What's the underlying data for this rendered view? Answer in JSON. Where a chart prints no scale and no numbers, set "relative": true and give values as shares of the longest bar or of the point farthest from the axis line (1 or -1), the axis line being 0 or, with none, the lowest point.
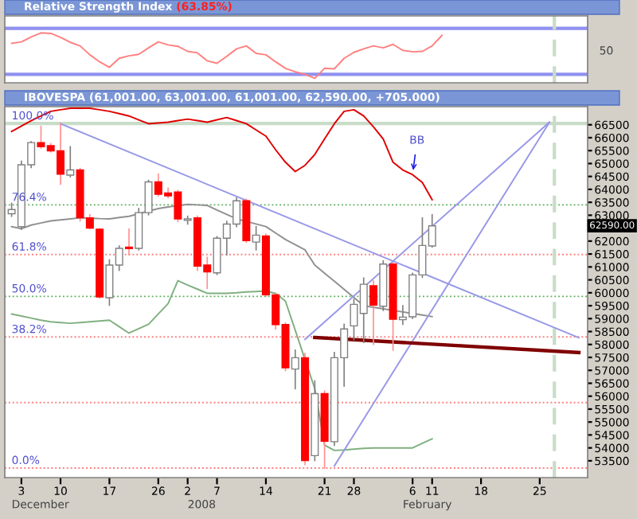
{
  "chart_data": [
    {
      "type": "line",
      "relative": true,
      "title": "Relative Strength Index",
      "subtitle": "(63.85%)",
      "categories": [
        null,
        "3",
        null,
        null,
        null,
        "10",
        null,
        null,
        null,
        null,
        "17",
        null,
        null,
        null,
        null,
        "26",
        null,
        null,
        "2",
        null,
        null,
        "7",
        null,
        null,
        null,
        null,
        "14",
        null,
        null,
        null,
        null,
        null,
        "21",
        null,
        null,
        "28",
        null,
        null,
        null,
        null,
        null,
        "6",
        null,
        "11",
        null,
        null,
        null,
        null,
        "18",
        null,
        null,
        null,
        null,
        null,
        "25",
        null,
        null,
        null,
        null
      ],
      "tick_labels": false,
      "series": [
        {
          "color": "#ff8080",
          "values": [
            0.79,
            0.82,
            0.92,
            1,
            0.99,
            0.91,
            0.81,
            0.74,
            0.56,
            0.42,
            0.31,
            0.49,
            0.54,
            0.57,
            0.7,
            0.82,
            0.76,
            0.73,
            0.63,
            0.6,
            0.44,
            0.39,
            0.53,
            0.68,
            0.74,
            0.59,
            0.56,
            0.42,
            0.29,
            0.22,
            0.17,
            0.09,
            0.29,
            0.28,
            0.49,
            0.61,
            0.68,
            0.74,
            0.7,
            0.77,
            0.65,
            0.62,
            0.63,
            0.74,
            0.95,
            null,
            null,
            null,
            null,
            null,
            null,
            null,
            null,
            null,
            null,
            null,
            null,
            null,
            null
          ]
        }
      ],
      "ref_lines": [
        {
          "axis": "y",
          "value": 1.09,
          "label": null,
          "color": "#9090f0",
          "line_style": "solid"
        },
        {
          "axis": "y",
          "value": 0.17,
          "label": null,
          "color": "#9090f0",
          "line_style": "solid"
        }
      ],
      "annotations": [
        "50"
      ]
    },
    {
      "type": "candlestick",
      "title": "IBOVESPA (61,001.00, 63,001.00, 61,001.00, 62,590.00, +705.000)",
      "categories": [
        null,
        "3",
        null,
        null,
        null,
        "10",
        null,
        null,
        null,
        null,
        "17",
        null,
        null,
        null,
        null,
        "26",
        null,
        null,
        "2",
        null,
        null,
        "7",
        null,
        null,
        null,
        null,
        "14",
        null,
        null,
        null,
        null,
        null,
        "21",
        null,
        null,
        "28",
        null,
        null,
        null,
        null,
        null,
        "6",
        null,
        "11",
        null,
        null,
        null,
        null,
        "18",
        null,
        null,
        null,
        null,
        null,
        "25",
        null,
        null,
        null,
        null
      ],
      "ylim": [
        52850,
        67200
      ],
      "ohlc": [
        [
          63060,
          63460,
          62960,
          63220
        ],
        [
          62560,
          65090,
          62460,
          64950
        ],
        [
          64950,
          65840,
          64850,
          65810
        ],
        [
          65810,
          66440,
          65600,
          65650
        ],
        [
          65690,
          65770,
          65450,
          65490
        ],
        [
          65490,
          66540,
          64200,
          64590
        ],
        [
          64550,
          65650,
          64490,
          64750
        ],
        [
          64750,
          64810,
          62780,
          62900
        ],
        [
          62900,
          63020,
          62480,
          62500
        ],
        [
          62460,
          62480,
          59800,
          59840
        ],
        [
          59810,
          61270,
          59520,
          61070
        ],
        [
          61070,
          61810,
          60870,
          61720
        ],
        [
          61770,
          62460,
          61470,
          61710
        ],
        [
          61720,
          63260,
          61660,
          63100
        ],
        [
          63100,
          64350,
          63020,
          64290
        ],
        [
          64290,
          64590,
          63750,
          63810
        ],
        [
          63860,
          64050,
          63680,
          63750
        ],
        [
          63900,
          63960,
          62760,
          62860
        ],
        [
          62800,
          62960,
          62660,
          62860
        ],
        [
          62900,
          62960,
          60870,
          61030
        ],
        [
          61070,
          61370,
          60170,
          60810
        ],
        [
          60770,
          62170,
          60710,
          62110
        ],
        [
          62110,
          62760,
          61470,
          62660
        ],
        [
          62660,
          63660,
          62560,
          63560
        ],
        [
          63560,
          63620,
          61960,
          62020
        ],
        [
          61960,
          62560,
          61660,
          62230
        ],
        [
          62200,
          62260,
          59860,
          59920
        ],
        [
          59920,
          59980,
          58600,
          58770
        ],
        [
          58770,
          58830,
          56990,
          57100
        ],
        [
          57050,
          57780,
          56290,
          57490
        ],
        [
          57490,
          57650,
          53350,
          53510
        ],
        [
          53700,
          56590,
          53510,
          56100
        ],
        [
          56100,
          56200,
          53220,
          54260
        ],
        [
          54240,
          57690,
          54100,
          57490
        ],
        [
          57490,
          58780,
          56390,
          58600
        ],
        [
          58720,
          59740,
          58180,
          59550
        ],
        [
          59200,
          60570,
          58080,
          60330
        ],
        [
          60270,
          60450,
          58000,
          59520
        ],
        [
          59480,
          61230,
          59320,
          61110
        ],
        [
          61110,
          61170,
          57780,
          58980
        ],
        [
          58960,
          59500,
          58780,
          59060
        ],
        [
          59070,
          60750,
          59010,
          60690
        ],
        [
          60690,
          62900,
          60600,
          61830
        ],
        [
          61810,
          63020,
          61770,
          62590
        ],
        null,
        null,
        null,
        null,
        null,
        null,
        null,
        null,
        null,
        null,
        null,
        null,
        null,
        null,
        null
      ],
      "colors": [
        "#ffffff",
        "#ffffff",
        "#ffffff",
        "#ff0000",
        "#ff0000",
        "#ff0000",
        "#ffffff",
        "#ff0000",
        "#ff0000",
        "#ff0000",
        "#ffffff",
        "#ffffff",
        "#ff0000",
        "#ffffff",
        "#ffffff",
        "#ff0000",
        "#ff0000",
        "#ff0000",
        "#ffffff",
        "#ff0000",
        "#ff0000",
        "#ffffff",
        "#ffffff",
        "#ffffff",
        "#ff0000",
        "#ffffff",
        "#ff0000",
        "#ff0000",
        "#ff0000",
        "#ffffff",
        "#ff0000",
        "#ffffff",
        "#ff0000",
        "#ffffff",
        "#ffffff",
        "#ffffff",
        "#ffffff",
        "#ff0000",
        "#ffffff",
        "#ff0000",
        "#ffffff",
        "#ffffff",
        "#ffffff",
        "#ffffff",
        null,
        null,
        null,
        null,
        null,
        null,
        null,
        null,
        null,
        null,
        null,
        null,
        null,
        null,
        null
      ],
      "series": [
        {
          "type": "line",
          "color": "#e00000",
          "values": [
            66240,
            66450,
            66660,
            66840,
            67020,
            67080,
            67140,
            67140,
            67140,
            67080,
            67020,
            66930,
            66840,
            66690,
            66540,
            66570,
            66600,
            66660,
            66720,
            66660,
            66600,
            66690,
            66780,
            66660,
            66540,
            66300,
            66060,
            65530,
            65050,
            64690,
            64930,
            65350,
            65950,
            66540,
            67020,
            67080,
            66840,
            66420,
            65950,
            65050,
            64750,
            64570,
            64270,
            63600,
            null,
            null,
            null,
            null,
            null,
            null,
            null,
            null,
            null,
            null,
            null,
            null,
            null,
            null,
            null
          ]
        },
        {
          "type": "line",
          "color": "#909090",
          "values": [
            62560,
            62480,
            62620,
            62700,
            62780,
            62820,
            62860,
            62900,
            62890,
            62870,
            62860,
            62910,
            62960,
            63060,
            63160,
            63260,
            63320,
            63370,
            63420,
            63400,
            63380,
            63200,
            63030,
            62860,
            62760,
            62660,
            62560,
            62310,
            62060,
            61860,
            61660,
            61070,
            60760,
            60450,
            60130,
            59820,
            59500,
            59440,
            59380,
            59320,
            59260,
            59200,
            59140,
            59080,
            null,
            null,
            null,
            null,
            null,
            null,
            null,
            null,
            null,
            null,
            null,
            null,
            null,
            null,
            null
          ]
        },
        {
          "type": "line",
          "color": "#80b080",
          "values": [
            59180,
            59100,
            59020,
            58940,
            58880,
            58850,
            58820,
            58850,
            58880,
            58910,
            58940,
            58690,
            58440,
            58610,
            58780,
            59180,
            59580,
            60470,
            60300,
            60140,
            59980,
            59980,
            59980,
            60000,
            60030,
            60050,
            60070,
            59970,
            59680,
            58550,
            57420,
            56290,
            54110,
            53900,
            53920,
            53950,
            53980,
            54000,
            54000,
            54000,
            54000,
            54000,
            54180,
            54350,
            null,
            null,
            null,
            null,
            null,
            null,
            null,
            null,
            null,
            null,
            null,
            null,
            null,
            null,
            null
          ]
        },
        {
          "type": "line",
          "color": "#9898e8",
          "values": [
            null,
            null,
            null,
            null,
            null,
            66540,
            null,
            null,
            null,
            null,
            null,
            null,
            null,
            null,
            null,
            null,
            null,
            null,
            null,
            null,
            null,
            null,
            null,
            null,
            null,
            null,
            null,
            null,
            null,
            null,
            null,
            null,
            null,
            null,
            null,
            null,
            null,
            null,
            null,
            null,
            null,
            null,
            null,
            null,
            null,
            null,
            null,
            null,
            null,
            null,
            null,
            null,
            null,
            null,
            null,
            null,
            null,
            null,
            58260
          ]
        },
        {
          "type": "line",
          "color": "#9898e8",
          "values": [
            null,
            null,
            null,
            null,
            null,
            null,
            null,
            null,
            null,
            null,
            null,
            null,
            null,
            null,
            null,
            null,
            null,
            null,
            null,
            null,
            null,
            null,
            null,
            null,
            null,
            null,
            null,
            null,
            null,
            null,
            58200,
            null,
            null,
            null,
            null,
            null,
            null,
            null,
            null,
            null,
            null,
            null,
            null,
            null,
            null,
            null,
            null,
            null,
            null,
            null,
            null,
            null,
            null,
            null,
            null,
            66600,
            null,
            null,
            null
          ]
        },
        {
          "type": "line",
          "color": "#9898e8",
          "values": [
            null,
            null,
            null,
            null,
            null,
            null,
            null,
            null,
            null,
            null,
            null,
            null,
            null,
            null,
            null,
            null,
            null,
            null,
            null,
            null,
            null,
            null,
            null,
            null,
            null,
            null,
            null,
            null,
            null,
            null,
            null,
            null,
            null,
            53300,
            null,
            null,
            null,
            null,
            null,
            null,
            null,
            null,
            null,
            null,
            null,
            null,
            null,
            null,
            null,
            null,
            null,
            null,
            null,
            null,
            null,
            66600,
            null,
            null,
            null
          ]
        },
        {
          "type": "line",
          "color": "#800000",
          "values": [
            null,
            null,
            null,
            null,
            null,
            null,
            null,
            null,
            null,
            null,
            null,
            null,
            null,
            null,
            null,
            null,
            null,
            null,
            null,
            null,
            null,
            null,
            null,
            null,
            null,
            null,
            null,
            null,
            null,
            null,
            null,
            58270,
            null,
            null,
            null,
            null,
            null,
            null,
            null,
            null,
            null,
            null,
            null,
            null,
            null,
            null,
            null,
            null,
            null,
            null,
            null,
            null,
            null,
            null,
            null,
            null,
            null,
            null,
            57690
          ]
        }
      ],
      "ref_lines": [
        {
          "axis": "y",
          "value": 66550,
          "label": null,
          "color": "#c8dcc8",
          "line_style": "solid"
        },
        {
          "axis": "y",
          "value": 63400,
          "label": null,
          "color": "#60b060",
          "line_style": "dotted"
        },
        {
          "axis": "y",
          "value": 61480,
          "label": null,
          "color": "#ff8080",
          "line_style": "dotted"
        },
        {
          "axis": "y",
          "value": 59860,
          "label": null,
          "color": "#60b060",
          "line_style": "dotted"
        },
        {
          "axis": "y",
          "value": 58290,
          "label": null,
          "color": "#ff8080",
          "line_style": "dotted"
        },
        {
          "axis": "y",
          "value": 55750,
          "label": null,
          "color": "#ff8080",
          "line_style": "dotted"
        },
        {
          "axis": "y",
          "value": 53220,
          "label": null,
          "color": "#ff8080",
          "line_style": "dotted"
        }
      ],
      "yticks": [
        53500,
        54000,
        54500,
        55000,
        55500,
        56000,
        56500,
        57000,
        57500,
        58000,
        58500,
        59000,
        59500,
        60000,
        60500,
        61000,
        61500,
        62000,
        {
          "value": 62500,
          "label": null
        },
        63000,
        63500,
        64000,
        64500,
        65000,
        65500,
        66000,
        66500
      ],
      "annotations": [
        {
          "text": "100.0%",
          "y": 66550
        },
        {
          "text": "76.4%",
          "y": 63400
        },
        {
          "text": "61.8%",
          "y": 61480
        },
        {
          "text": "50.0%",
          "y": 59860
        },
        {
          "text": "38.2%",
          "y": 58290
        },
        {
          "text": "0.0%",
          "y": 53220
        },
        {
          "text": "BB",
          "x": "6",
          "y": 64570
        },
        "62590.00",
        "December",
        "2008",
        "February"
      ]
    }
  ]
}
